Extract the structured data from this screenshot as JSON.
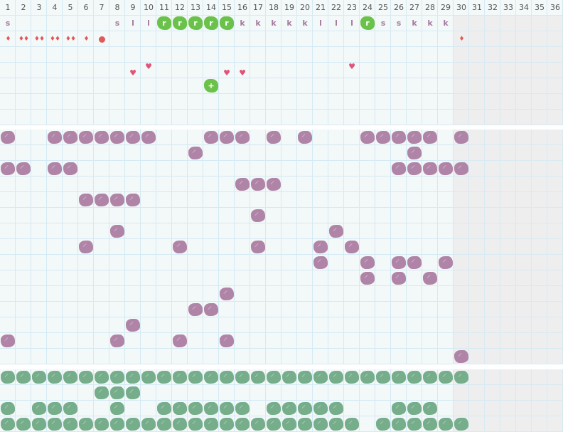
{
  "header": {
    "days": [
      "1",
      "2",
      "3",
      "4",
      "5",
      "6",
      "7",
      "8",
      "9",
      "10",
      "11",
      "12",
      "13",
      "14",
      "15",
      "16",
      "17",
      "18",
      "19",
      "20",
      "21",
      "22",
      "23",
      "24",
      "25",
      "26",
      "27",
      "28",
      "29",
      "30",
      "31",
      "32",
      "33",
      "34",
      "35",
      "36"
    ]
  },
  "inactive_from_day": 30,
  "colors": {
    "grid_bg": "#f3f8f9",
    "grid_line": "#d4eaf4",
    "inactive_bg": "#eeeeee",
    "purple": "#b084a7",
    "green_dark": "#76ad8a",
    "green_bright": "#6bc24a",
    "drop": "#e05858",
    "heart": "#e0547a",
    "letter": "#a57b9e"
  },
  "top": {
    "letters": [
      {
        "day": 1,
        "text": "s"
      },
      {
        "day": 8,
        "text": "s"
      },
      {
        "day": 9,
        "text": "l"
      },
      {
        "day": 10,
        "text": "l"
      },
      {
        "day": 11,
        "text": "r",
        "highlight": true
      },
      {
        "day": 12,
        "text": "r",
        "highlight": true
      },
      {
        "day": 13,
        "text": "r",
        "highlight": true
      },
      {
        "day": 14,
        "text": "r",
        "highlight": true
      },
      {
        "day": 15,
        "text": "r",
        "highlight": true
      },
      {
        "day": 16,
        "text": "k"
      },
      {
        "day": 17,
        "text": "k"
      },
      {
        "day": 18,
        "text": "k"
      },
      {
        "day": 19,
        "text": "k"
      },
      {
        "day": 20,
        "text": "k"
      },
      {
        "day": 21,
        "text": "l"
      },
      {
        "day": 22,
        "text": "l"
      },
      {
        "day": 23,
        "text": "l"
      },
      {
        "day": 24,
        "text": "r",
        "highlight": true
      },
      {
        "day": 25,
        "text": "s"
      },
      {
        "day": 26,
        "text": "s"
      },
      {
        "day": 27,
        "text": "k"
      },
      {
        "day": 28,
        "text": "k"
      },
      {
        "day": 29,
        "text": "k"
      }
    ],
    "flow": [
      {
        "day": 1,
        "drops": 1,
        "icon": "drop-icon"
      },
      {
        "day": 2,
        "drops": 2,
        "icon": "drop-icon"
      },
      {
        "day": 3,
        "drops": 2,
        "icon": "drop-icon"
      },
      {
        "day": 4,
        "drops": 2,
        "icon": "drop-icon"
      },
      {
        "day": 5,
        "drops": 2,
        "icon": "drop-icon"
      },
      {
        "day": 6,
        "drops": 1,
        "icon": "drop-icon"
      },
      {
        "day": 7,
        "drops": 0,
        "icon": "spot-icon"
      },
      {
        "day": 30,
        "drops": 1,
        "icon": "drop-icon"
      }
    ],
    "hearts": [
      {
        "day": 9,
        "level": "low"
      },
      {
        "day": 10,
        "level": "high"
      },
      {
        "day": 15,
        "level": "low"
      },
      {
        "day": 16,
        "level": "low"
      },
      {
        "day": 23,
        "level": "high"
      }
    ],
    "marker": {
      "day": 14,
      "text": "+"
    }
  },
  "purple": {
    "rows": [
      [
        1,
        4,
        5,
        6,
        7,
        8,
        9,
        10,
        14,
        15,
        16,
        18,
        20,
        24,
        25,
        26,
        27,
        28,
        30
      ],
      [
        13,
        27
      ],
      [
        1,
        2,
        4,
        5,
        26,
        27,
        28,
        29,
        30
      ],
      [
        16,
        17,
        18
      ],
      [
        6,
        7,
        8,
        9
      ],
      [
        17
      ],
      [
        8,
        22
      ],
      [
        6,
        12,
        17,
        21,
        23
      ],
      [
        21,
        24,
        26,
        27,
        29
      ],
      [
        24,
        26,
        28
      ],
      [
        15
      ],
      [
        13,
        14
      ],
      [
        9
      ],
      [
        1,
        8,
        12,
        15
      ],
      [
        30
      ]
    ]
  },
  "green": {
    "rows": [
      [
        1,
        2,
        3,
        4,
        5,
        6,
        7,
        8,
        9,
        10,
        11,
        12,
        13,
        14,
        15,
        16,
        17,
        18,
        19,
        20,
        21,
        22,
        23,
        24,
        25,
        26,
        27,
        28,
        29,
        30
      ],
      [
        7,
        8,
        9
      ],
      [
        1,
        3,
        4,
        5,
        8,
        11,
        12,
        13,
        14,
        15,
        16,
        18,
        19,
        20,
        21,
        22,
        26,
        27,
        28
      ],
      [
        1,
        2,
        3,
        4,
        5,
        6,
        7,
        8,
        9,
        10,
        11,
        12,
        13,
        14,
        15,
        16,
        17,
        18,
        19,
        20,
        21,
        22,
        23,
        25,
        26,
        27,
        28,
        29,
        30
      ]
    ]
  }
}
